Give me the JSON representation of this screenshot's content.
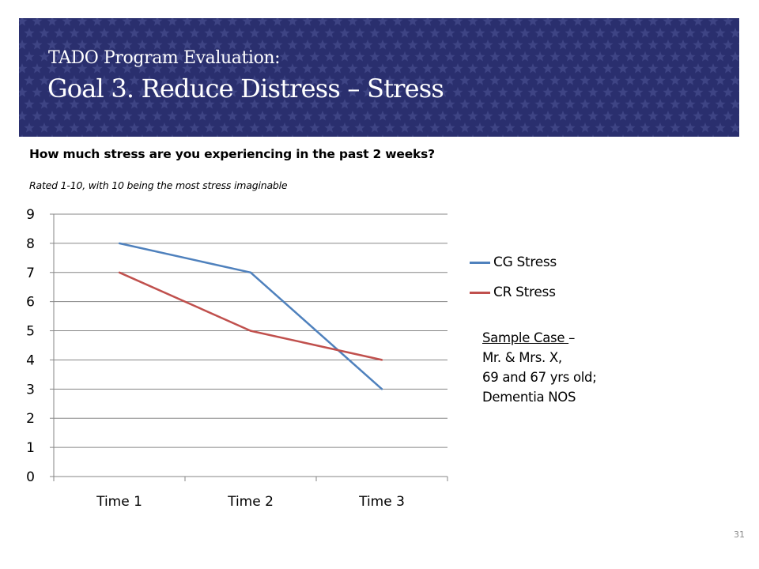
{
  "slide": {
    "title_line1": "TADO Program Evaluation:",
    "title_line2": "Goal 3. Reduce Distress – Stress",
    "question": "How much stress are you experiencing in the past 2 weeks?",
    "rating_note": "Rated 1-10, with 10 being the most stress imaginable",
    "page_number": "31"
  },
  "sample_case": {
    "heading": "Sample Case ",
    "heading_dash": "–",
    "lines": [
      "Mr. & Mrs. X,",
      "69 and 67 yrs old;",
      "Dementia NOS"
    ]
  },
  "colors": {
    "banner": "#2a2f6e",
    "star": "#3e4484",
    "cg_line": "#4f81bd",
    "cr_line": "#c0504d"
  },
  "chart_data": {
    "type": "line",
    "categories": [
      "Time 1",
      "Time 2",
      "Time 3"
    ],
    "series": [
      {
        "name": "CG Stress",
        "values": [
          8,
          7,
          3
        ],
        "color": "#4f81bd"
      },
      {
        "name": "CR Stress",
        "values": [
          7,
          5,
          4
        ],
        "color": "#c0504d"
      }
    ],
    "ylim": [
      0,
      9
    ],
    "yticks": [
      0,
      1,
      2,
      3,
      4,
      5,
      6,
      7,
      8,
      9
    ],
    "grid": true,
    "legend": "right"
  }
}
